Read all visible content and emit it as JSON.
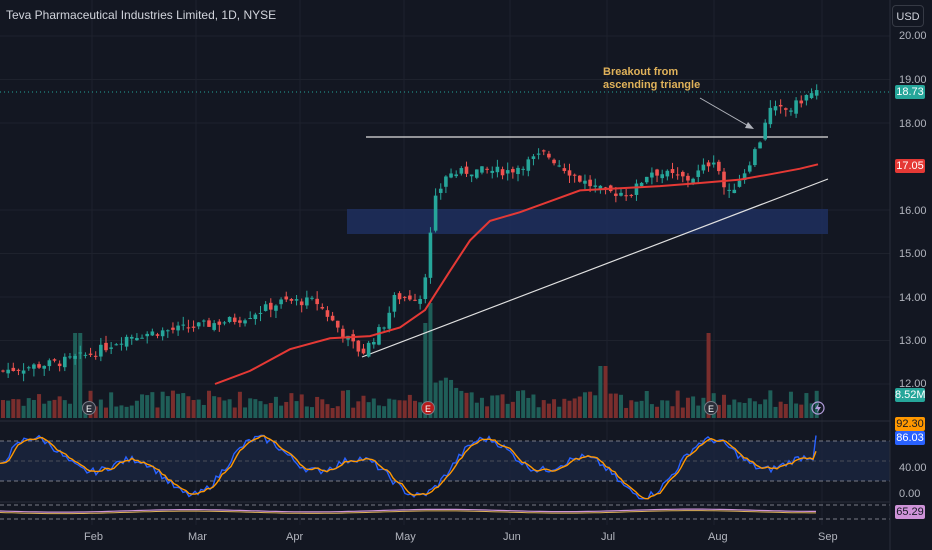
{
  "header": {
    "title": "Teva Pharmaceutical Industries Limited, 1D, NYSE",
    "currency": "USD"
  },
  "annotation": {
    "line1": "Breakout from",
    "line2": "ascending triangle"
  },
  "colors": {
    "background": "#131722",
    "up": "#26a69a",
    "down": "#ef5350",
    "ma": "#e53935",
    "blue_line": "#2962ff",
    "orange_line": "#ff9800",
    "zone": "#1e2f5e"
  },
  "price_axis": {
    "ticks": [
      "20.00",
      "19.00",
      "18.00",
      "16.00",
      "15.00",
      "14.00",
      "13.00",
      "12.00"
    ],
    "last_price": "18.73",
    "ma_value": "17.05",
    "volume_value": "8.52M"
  },
  "oscillator_axis": {
    "ticks": [
      "40.00",
      "0.00"
    ],
    "k_value": "92.30",
    "d_value": "86.03"
  },
  "bottom_axis": {
    "value": "65.29"
  },
  "time_axis": [
    "Feb",
    "Mar",
    "Apr",
    "May",
    "Jun",
    "Jul",
    "Aug",
    "Sep"
  ],
  "chart_data": {
    "type": "candlestick",
    "title": "Teva Pharmaceutical Industries Limited, 1D, NYSE",
    "ylim": [
      11.5,
      20.5
    ],
    "key_points": [
      {
        "date": "Jan",
        "close": 12.3
      },
      {
        "date": "Feb",
        "close": 12.7
      },
      {
        "date": "Mar",
        "close": 13.3
      },
      {
        "date": "Apr",
        "close": 13.9
      },
      {
        "date": "Apr late",
        "close": 12.7
      },
      {
        "date": "May early",
        "close": 14.0
      },
      {
        "date": "May",
        "close": 16.2
      },
      {
        "date": "Jun",
        "close": 17.0
      },
      {
        "date": "Jul",
        "close": 16.5
      },
      {
        "date": "Aug",
        "close": 16.6
      },
      {
        "date": "Aug late",
        "close": 18.5
      },
      {
        "date": "Sep",
        "close": 18.73
      }
    ],
    "moving_average_last": 17.05,
    "resistance": 17.7,
    "support_zone": [
      15.5,
      16.05
    ],
    "trendline": {
      "start": {
        "date": "Apr late",
        "price": 12.6
      },
      "end": {
        "date": "Sep",
        "price": 16.7
      }
    },
    "volume_last": "8.52M",
    "earnings_markers": [
      "Feb",
      "May",
      "Aug"
    ],
    "stochastic": {
      "k": 92.3,
      "d": 86.03,
      "levels": [
        80,
        20
      ]
    },
    "bottom_indicator": 65.29
  }
}
